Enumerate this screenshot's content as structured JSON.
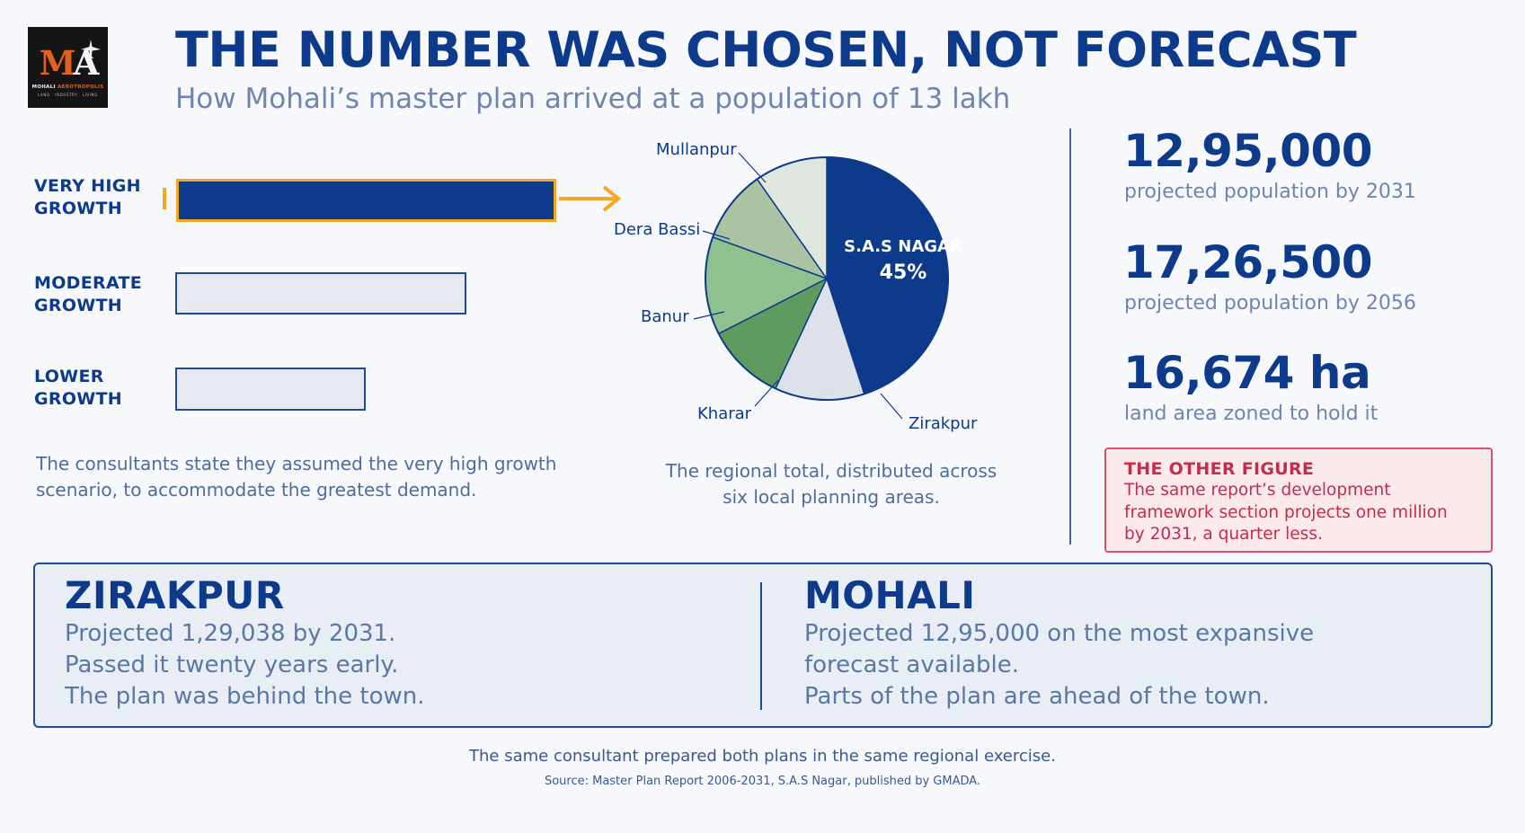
{
  "logo": {
    "mark_m": "M",
    "mark_a": "A",
    "name_part1": "MOHALI",
    "name_part2": "AEROTROPOLIS",
    "tagline": "LAND · INDUSTRY · LIVING"
  },
  "title": "THE NUMBER WAS CHOSEN, NOT FORECAST",
  "subtitle": "How Mohali’s master plan arrived at a population of 13 lakh",
  "scenarios": {
    "very_high": {
      "line1": "VERY HIGH",
      "line2": "GROWTH",
      "level": 1.0
    },
    "moderate": {
      "line1": "MODERATE",
      "line2": "GROWTH",
      "level": 0.77
    },
    "lower": {
      "line1": "LOWER",
      "line2": "GROWTH",
      "level": 0.5
    }
  },
  "scenario_note": {
    "line1": "The consultants state they assumed the very high growth",
    "line2": "scenario, to accommodate the greatest demand."
  },
  "pie": {
    "highlight_name": "S.A.S NAGAR",
    "highlight_pct": "45%",
    "labels": {
      "mullanpur": "Mullanpur",
      "dera_bassi": "Dera Bassi",
      "banur": "Banur",
      "kharar": "Kharar",
      "zirakpur": "Zirakpur"
    },
    "note_line1": "The regional total, distributed across",
    "note_line2": "six local planning areas.",
    "colors": {
      "sas_nagar": "#0d3a8a",
      "zirakpur": "#dde2ea",
      "kharar": "#5f9a5f",
      "banur": "#8fc08f",
      "dera_bassi": "#a9c3a3",
      "mullanpur": "#dfe6dd"
    }
  },
  "stats": [
    {
      "value": "12,95,000",
      "caption": "projected population by 2031"
    },
    {
      "value": "17,26,500",
      "caption": "projected population by 2056"
    },
    {
      "value": "16,674 ha",
      "caption": "land area zoned to hold it"
    }
  ],
  "other_figure": {
    "heading": "THE OTHER FIGURE",
    "line1": "The same report’s development",
    "line2": "framework section projects one million",
    "line3": "by 2031, a quarter less."
  },
  "comparison": {
    "zirakpur": {
      "heading": "ZIRAKPUR",
      "line1": "Projected 1,29,038 by 2031.",
      "line2": "Passed it twenty years early.",
      "line3": "The plan was behind the town."
    },
    "mohali": {
      "heading": "MOHALI",
      "line1": "Projected 12,95,000 on the most expansive",
      "line2": "forecast available.",
      "line3": "Parts of the plan are ahead of the town."
    }
  },
  "footer": {
    "note": "The same consultant prepared both plans in the same regional exercise.",
    "source": "Source: Master Plan Report 2006-2031, S.A.S Nagar, published by GMADA."
  },
  "accent_color": "#f5a623",
  "brand_color": "#0d3a8a",
  "alert_color": "#c22e4a"
}
